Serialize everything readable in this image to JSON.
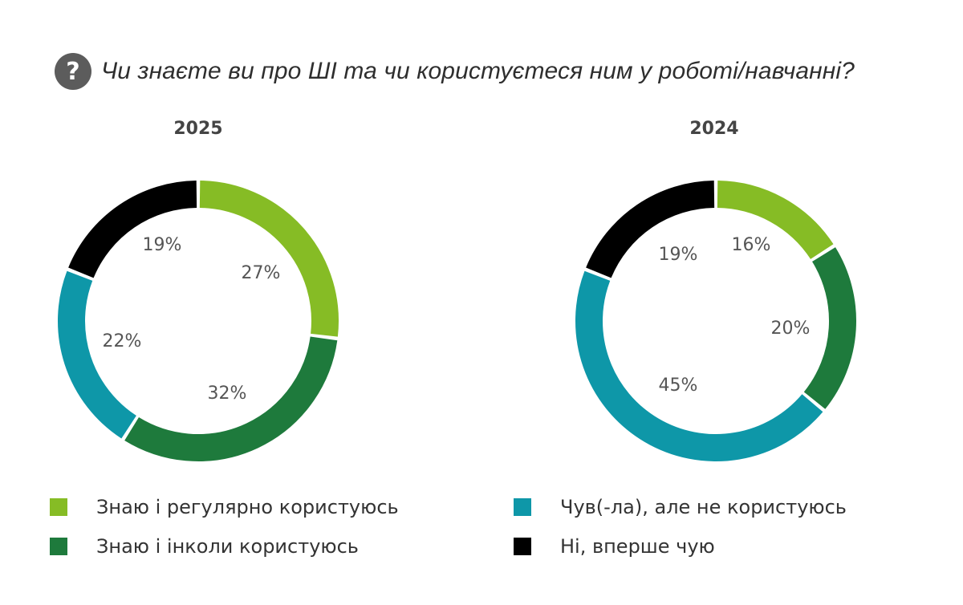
{
  "question": {
    "icon": "question-icon",
    "text": "Чи знаєте ви про ШІ та чи користуєтеся ним у роботі/навчанні?"
  },
  "colors": {
    "regular": "#86bc25",
    "sometimes": "#1e7a3c",
    "heard": "#0e97a8",
    "no": "#000000"
  },
  "legend": [
    {
      "key": "regular",
      "label": "Знаю і регулярно користуюсь"
    },
    {
      "key": "sometimes",
      "label": "Знаю і інколи користуюсь"
    },
    {
      "key": "heard",
      "label": "Чув(-ла), але не користуюсь"
    },
    {
      "key": "no",
      "label": "Ні, вперше чую"
    }
  ],
  "chart_data": [
    {
      "type": "pie",
      "title": "2025",
      "categories": [
        "Знаю і регулярно користуюсь",
        "Знаю і інколи користуюсь",
        "Чув(-ла), але не користуюсь",
        "Ні, вперше чую"
      ],
      "values": [
        27,
        32,
        22,
        19
      ],
      "labels": [
        "27%",
        "32%",
        "22%",
        "19%"
      ]
    },
    {
      "type": "pie",
      "title": "2024",
      "categories": [
        "Знаю і регулярно користуюсь",
        "Знаю і інколи користуюсь",
        "Чув(-ла), але не користуюсь",
        "Ні, вперше чую"
      ],
      "values": [
        16,
        20,
        45,
        19
      ],
      "labels": [
        "16%",
        "20%",
        "45%",
        "19%"
      ]
    }
  ]
}
